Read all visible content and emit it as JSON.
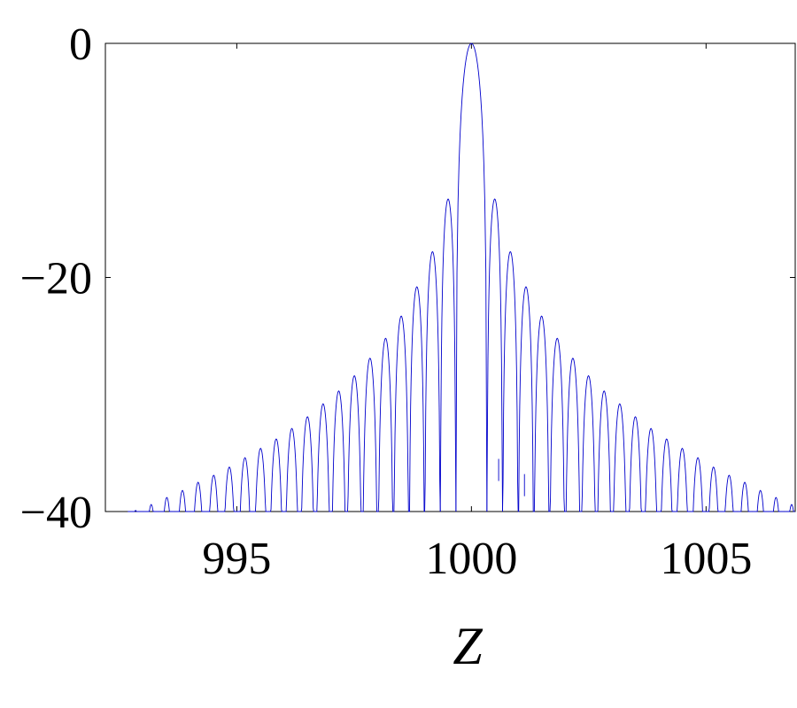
{
  "chart_data": {
    "type": "line",
    "title": "",
    "xlabel": "Z",
    "ylabel": "",
    "xlim": [
      992.2,
      1006.9
    ],
    "ylim": [
      -40,
      0
    ],
    "x_ticks": [
      995,
      1000,
      1005
    ],
    "x_tick_labels": [
      "995",
      "1000",
      "1005"
    ],
    "y_ticks": [
      0,
      -20,
      -40
    ],
    "y_tick_labels": [
      "0",
      "−20",
      "−40"
    ],
    "grid": false,
    "series": [
      {
        "color": "#0000cc",
        "description_peaks": "lobe peak values in dB at lobe centers",
        "lobe_spacing": 0.333,
        "main_lobe_center": 1000,
        "main_lobe_halfwidth": 0.33,
        "main_lobe_peak": 0,
        "side_lobe_peaks": [
          -13.3,
          -17.8,
          -20.8,
          -23.3,
          -25.2,
          -26.9,
          -28.4,
          -29.7,
          -30.8,
          -31.9,
          -32.9,
          -33.8,
          -34.6,
          -35.4,
          -36.2,
          -36.9,
          -37.5,
          -38.2,
          -38.8,
          -39.4,
          -39.9
        ]
      }
    ]
  }
}
